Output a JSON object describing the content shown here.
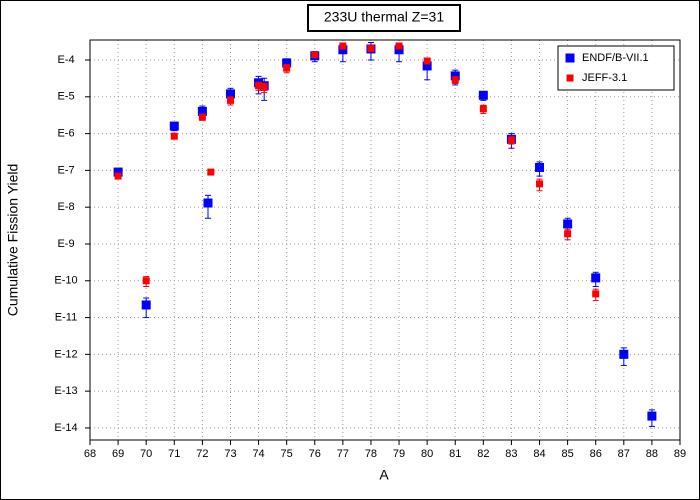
{
  "chart_data": {
    "type": "scatter",
    "title": "233U thermal Z=31",
    "xlabel": "A",
    "ylabel": "Cumulative Fission Yield",
    "log_y": true,
    "grid": true,
    "legend": "upper right",
    "xlim": [
      68,
      89
    ],
    "xticks": [
      68,
      69,
      70,
      71,
      72,
      73,
      74,
      75,
      76,
      77,
      78,
      79,
      80,
      81,
      82,
      83,
      84,
      85,
      86,
      87,
      88,
      89
    ],
    "ylim": [
      4.7e-15,
      0.00035
    ],
    "yticks": [
      {
        "value": 0.0001,
        "label": "E-4"
      },
      {
        "value": 1e-05,
        "label": "E-5"
      },
      {
        "value": 1e-06,
        "label": "E-6"
      },
      {
        "value": 1e-07,
        "label": "E-7"
      },
      {
        "value": 1e-08,
        "label": "E-8"
      },
      {
        "value": 1e-09,
        "label": "E-9"
      },
      {
        "value": 1e-10,
        "label": "E-10"
      },
      {
        "value": 1e-11,
        "label": "E-11"
      },
      {
        "value": 1e-12,
        "label": "E-12"
      },
      {
        "value": 1e-13,
        "label": "E-13"
      },
      {
        "value": 1e-14,
        "label": "E-14"
      }
    ],
    "series": [
      {
        "name": "ENDF/B-VII.1",
        "color": "#0000ff",
        "x": [
          69,
          70,
          71,
          72,
          72.2,
          73,
          74,
          74.2,
          75,
          76,
          77,
          78,
          79,
          80,
          81,
          82,
          83,
          84,
          85,
          86,
          87,
          88
        ],
        "values": [
          9e-08,
          2.2e-11,
          1.6e-06,
          4e-06,
          1.3e-08,
          1.2e-05,
          2.4e-05,
          2e-05,
          8.3e-05,
          0.00013,
          0.00019,
          0.0002,
          0.00019,
          6.9e-05,
          3.7e-05,
          1.1e-05,
          7e-07,
          1.2e-07,
          3.5e-09,
          1.2e-10,
          1e-12,
          2.1e-14
        ],
        "errors": [
          2e-08,
          1.2e-11,
          4e-07,
          1.6e-06,
          8e-09,
          5e-06,
          1.2e-05,
          1.2e-05,
          2.5e-05,
          4e-05,
          0.0001,
          0.0001,
          0.0001,
          4e-05,
          1.6e-05,
          3e-06,
          3e-07,
          5e-08,
          1.5e-09,
          5e-11,
          5e-13,
          1e-14
        ]
      },
      {
        "name": "JEFF-3.1",
        "color": "#ff0000",
        "x": [
          69,
          70,
          71,
          72,
          72.3,
          73,
          74,
          74.2,
          75,
          76,
          77,
          78,
          79,
          80,
          81,
          82,
          83,
          84,
          85,
          86
        ],
        "values": [
          7e-08,
          1e-10,
          8.5e-07,
          2.8e-06,
          9e-08,
          8e-06,
          2e-05,
          1.8e-05,
          6e-05,
          0.00014,
          0.00024,
          0.00021,
          0.00024,
          9.4e-05,
          2.9e-05,
          4.7e-06,
          6.7e-07,
          4.3e-08,
          1.9e-09,
          4.4e-11
        ],
        "errors": [
          1e-08,
          3e-11,
          1e-07,
          5e-07,
          1e-08,
          2e-06,
          5e-06,
          5e-06,
          1.5e-05,
          2e-05,
          4e-05,
          4e-05,
          4e-05,
          1.5e-05,
          6e-06,
          1.2e-06,
          1.5e-07,
          1.5e-08,
          6e-10,
          1.5e-11
        ]
      }
    ]
  }
}
